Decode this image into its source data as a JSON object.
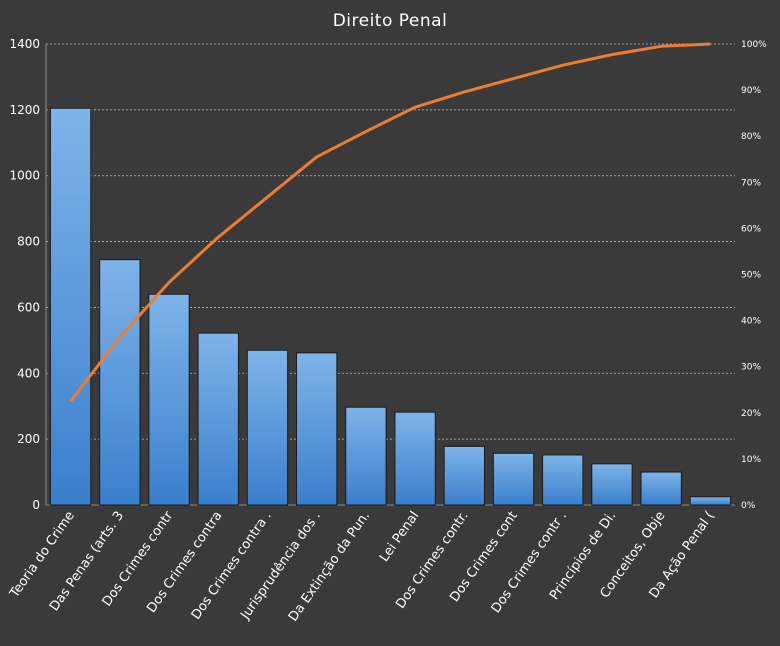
{
  "chart_data": {
    "type": "bar",
    "title": "Direito Penal",
    "categories": [
      "Teoria do Crime",
      "Das Penas (arts. 3",
      "Dos Crimes contr",
      "Dos Crimes contra",
      "Dos Crimes contra .",
      "Jurisprudência dos .",
      "Da Extinção da Pun.",
      "Lei Penal",
      "Dos Crimes contr.",
      "Dos Crimes cont",
      "Dos Crimes contr .",
      "Princípios de Di.",
      "Conceitos, Obje",
      "Da Ação Penal ("
    ],
    "series": [
      {
        "values": [
          1205,
          745,
          640,
          522,
          470,
          462,
          297,
          282,
          178,
          157,
          152,
          125,
          100,
          25
        ]
      },
      {
        "type": "line",
        "axis": "right",
        "values": [
          22.5,
          36.4,
          48.3,
          58.1,
          66.8,
          75.5,
          81.0,
          86.3,
          89.6,
          92.5,
          95.4,
          97.7,
          99.5,
          100
        ]
      }
    ],
    "ylim": [
      0,
      1400
    ],
    "yticks": [
      "0",
      "200",
      "400",
      "600",
      "800",
      "1000",
      "1200",
      "1400"
    ],
    "y2lim": [
      0,
      100
    ],
    "y2ticks": [
      "0%",
      "10%",
      "20%",
      "30%",
      "40%",
      "50%",
      "60%",
      "70%",
      "80%",
      "90%",
      "100%"
    ],
    "grid": true,
    "legend": "none",
    "colors": {
      "background": "#3a3a3a",
      "bar_top": "#7eb4ea",
      "bar_bottom": "#3a7fcc",
      "line": "#ed7d31",
      "text": "#ffffff",
      "grid": "#bfbfbf"
    }
  }
}
